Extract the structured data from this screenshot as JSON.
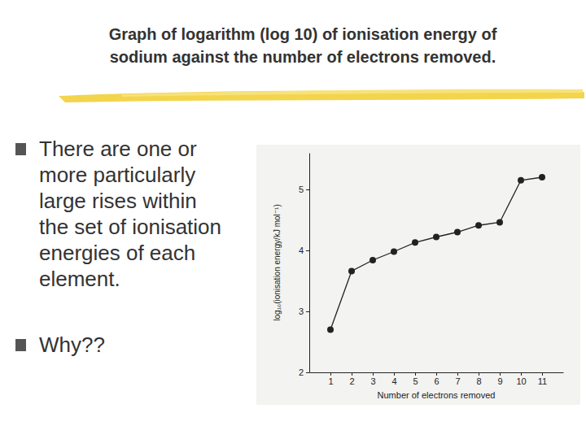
{
  "chart_data": {
    "type": "line",
    "title": "Graph of logarithm (log 10) of ionisation energy of sodium against the number of electrons removed.",
    "annotations": [
      "There are one or more particularly large rises within the set of ionisation energies of each element.",
      "Why??"
    ],
    "x_label": "Number of electrons removed",
    "y_label": "log₁₀(ionisation energy/kJ mol⁻¹)",
    "x": [
      1,
      2,
      3,
      4,
      5,
      6,
      7,
      8,
      9,
      10,
      11
    ],
    "values": [
      2.7,
      3.66,
      3.84,
      3.98,
      4.13,
      4.22,
      4.3,
      4.41,
      4.46,
      5.15,
      5.2
    ],
    "color": "#222222",
    "marker": "circle",
    "line_style": "solid",
    "xlim": [
      0,
      12
    ],
    "xticks": [
      1,
      2,
      3,
      4,
      5,
      6,
      7,
      8,
      9,
      10,
      11
    ],
    "ylim": [
      2,
      5.6
    ],
    "yticks": [
      2,
      3,
      4,
      5
    ],
    "grid": false
  }
}
